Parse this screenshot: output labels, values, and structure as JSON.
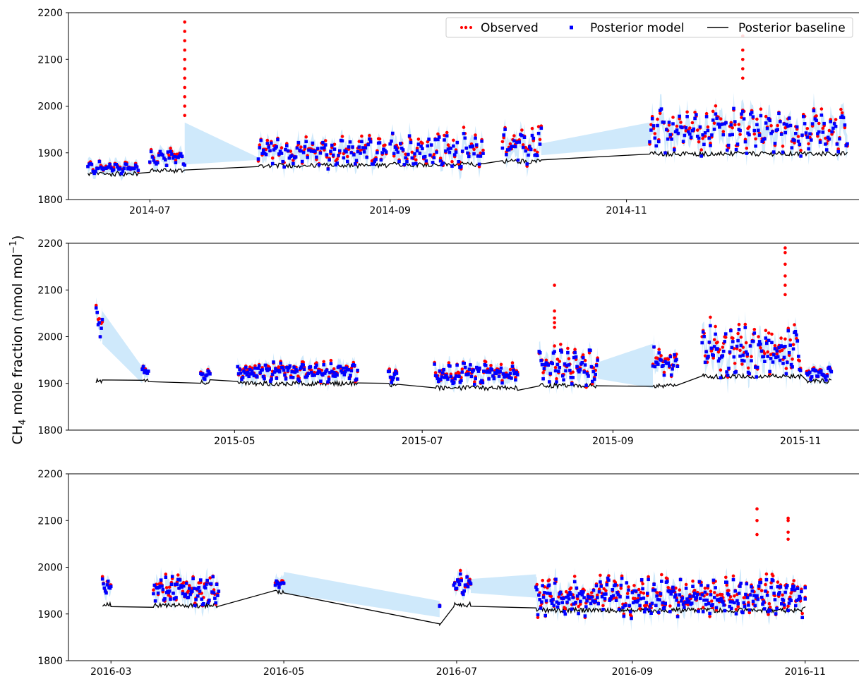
{
  "colors": {
    "observed": "#ff0000",
    "model": "#0000ff",
    "baseline": "#000000",
    "band": "#cfe9fb"
  },
  "chart_data": {
    "type": "scatter",
    "ylabel_main": "CH",
    "ylabel_sub": "4",
    "ylabel_rest": " mole fraction (nmol mol",
    "ylabel_sup": "−1",
    "ylabel_end": ")",
    "legend": {
      "placement": "top-right",
      "entries": [
        "Observed",
        "Posterior model",
        "Posterior baseline"
      ]
    },
    "panels": [
      {
        "ylim": [
          1800,
          2200
        ],
        "yticks": [
          1800,
          1900,
          2000,
          2100,
          2200
        ],
        "xlim": [
          "2014-06-10",
          "2014-12-31"
        ],
        "xticks": [
          {
            "date": "2014-07-01",
            "label": "2014-07"
          },
          {
            "date": "2014-09-01",
            "label": "2014-09"
          },
          {
            "date": "2014-11-01",
            "label": "2014-11"
          }
        ],
        "segments": [
          {
            "s": "2014-06-15",
            "e": "2014-06-28",
            "lvl": 1868,
            "amp": 14,
            "base": 1855
          },
          {
            "s": "2014-07-01",
            "e": "2014-07-10",
            "lvl": 1890,
            "amp": 20,
            "base": 1862
          },
          {
            "s": "2014-07-29",
            "e": "2014-08-31",
            "lvl": 1900,
            "amp": 35,
            "base": 1873
          },
          {
            "s": "2014-09-01",
            "e": "2014-09-25",
            "lvl": 1905,
            "amp": 40,
            "base": 1875
          },
          {
            "s": "2014-09-30",
            "e": "2014-10-10",
            "lvl": 1915,
            "amp": 45,
            "base": 1882
          },
          {
            "s": "2014-11-07",
            "e": "2014-12-28",
            "lvl": 1945,
            "amp": 55,
            "base": 1898
          }
        ],
        "spikes": [
          {
            "date": "2014-07-10",
            "values": [
              2180,
              2160,
              2140,
              2120,
              2100,
              2080,
              2060,
              2040,
              2020,
              2000,
              1980
            ]
          },
          {
            "date": "2014-12-01",
            "values": [
              2150,
              2120,
              2100,
              2080,
              2060
            ]
          }
        ],
        "gaps": [
          {
            "s": "2014-07-10",
            "e": "2014-07-29",
            "lo": [
              1875,
              1885
            ],
            "hi": [
              1965,
              1890
            ]
          },
          {
            "s": "2014-10-10",
            "e": "2014-11-07",
            "lo": [
              1895,
              1915
            ],
            "hi": [
              1920,
              1965
            ]
          }
        ]
      },
      {
        "ylim": [
          1800,
          2200
        ],
        "yticks": [
          1800,
          1900,
          2000,
          2100,
          2200
        ],
        "xlim": [
          "2015-03-08",
          "2015-11-20"
        ],
        "xticks": [
          {
            "date": "2015-05-01",
            "label": "2015-05"
          },
          {
            "date": "2015-07-01",
            "label": "2015-07"
          },
          {
            "date": "2015-09-01",
            "label": "2015-09"
          },
          {
            "date": "2015-11-01",
            "label": "2015-11"
          }
        ],
        "segments": [
          {
            "s": "2015-03-17",
            "e": "2015-03-19",
            "lvl": 2030,
            "amp": 35,
            "base": 1905
          },
          {
            "s": "2015-04-01",
            "e": "2015-04-03",
            "lvl": 1925,
            "amp": 12,
            "base": 1908
          },
          {
            "s": "2015-04-20",
            "e": "2015-04-23",
            "lvl": 1918,
            "amp": 10,
            "base": 1903
          },
          {
            "s": "2015-05-02",
            "e": "2015-06-10",
            "lvl": 1925,
            "amp": 22,
            "base": 1900
          },
          {
            "s": "2015-06-20",
            "e": "2015-06-23",
            "lvl": 1912,
            "amp": 15,
            "base": 1897
          },
          {
            "s": "2015-07-05",
            "e": "2015-08-01",
            "lvl": 1920,
            "amp": 25,
            "base": 1890
          },
          {
            "s": "2015-08-08",
            "e": "2015-08-27",
            "lvl": 1935,
            "amp": 40,
            "base": 1895
          },
          {
            "s": "2015-09-14",
            "e": "2015-09-22",
            "lvl": 1945,
            "amp": 35,
            "base": 1895
          },
          {
            "s": "2015-09-30",
            "e": "2015-11-01",
            "lvl": 1970,
            "amp": 60,
            "base": 1915
          },
          {
            "s": "2015-11-03",
            "e": "2015-11-11",
            "lvl": 1920,
            "amp": 15,
            "base": 1905
          }
        ],
        "spikes": [
          {
            "date": "2015-08-13",
            "values": [
              2110,
              2055,
              2040,
              2030,
              2020
            ]
          },
          {
            "date": "2015-10-27",
            "values": [
              2190,
              2180,
              2155,
              2130,
              2110,
              2090
            ]
          }
        ],
        "gaps": [
          {
            "s": "2015-03-19",
            "e": "2015-04-01",
            "lo": [
              1985,
              1900
            ],
            "hi": [
              2055,
              1935
            ]
          },
          {
            "s": "2015-08-27",
            "e": "2015-09-14",
            "lo": [
              1910,
              1890
            ],
            "hi": [
              1945,
              1985
            ]
          }
        ]
      },
      {
        "ylim": [
          1800,
          2200
        ],
        "yticks": [
          1800,
          1900,
          2000,
          2100,
          2200
        ],
        "xlim": [
          "2016-02-15",
          "2016-11-20"
        ],
        "xticks": [
          {
            "date": "2016-03-01",
            "label": "2016-03"
          },
          {
            "date": "2016-05-01",
            "label": "2016-05"
          },
          {
            "date": "2016-07-01",
            "label": "2016-07"
          },
          {
            "date": "2016-09-01",
            "label": "2016-09"
          },
          {
            "date": "2016-11-01",
            "label": "2016-11"
          }
        ],
        "segments": [
          {
            "s": "2016-02-27",
            "e": "2016-03-01",
            "lvl": 1960,
            "amp": 20,
            "base": 1920
          },
          {
            "s": "2016-03-16",
            "e": "2016-04-08",
            "lvl": 1950,
            "amp": 40,
            "base": 1918
          },
          {
            "s": "2016-04-28",
            "e": "2016-05-01",
            "lvl": 1965,
            "amp": 20,
            "base": 1948
          },
          {
            "s": "2016-06-25",
            "e": "2016-06-25",
            "lvl": 1918,
            "amp": 4,
            "base": 1880
          },
          {
            "s": "2016-06-30",
            "e": "2016-07-06",
            "lvl": 1965,
            "amp": 25,
            "base": 1920
          },
          {
            "s": "2016-07-29",
            "e": "2016-10-31",
            "lvl": 1935,
            "amp": 45,
            "base": 1908
          },
          {
            "s": "2016-11-01",
            "e": "2016-11-01",
            "lvl": 1940,
            "amp": 20,
            "base": 1920
          }
        ],
        "spikes": [
          {
            "date": "2016-10-15",
            "values": [
              2125,
              2100,
              2070
            ]
          },
          {
            "date": "2016-10-26",
            "values": [
              2105,
              2100,
              2075,
              2060
            ]
          }
        ],
        "gaps": [
          {
            "s": "2016-05-01",
            "e": "2016-06-25",
            "lo": [
              1945,
              1893
            ],
            "hi": [
              1990,
              1928
            ]
          },
          {
            "s": "2016-07-06",
            "e": "2016-07-29",
            "lo": [
              1945,
              1935
            ],
            "hi": [
              1975,
              1985
            ]
          }
        ]
      }
    ]
  }
}
